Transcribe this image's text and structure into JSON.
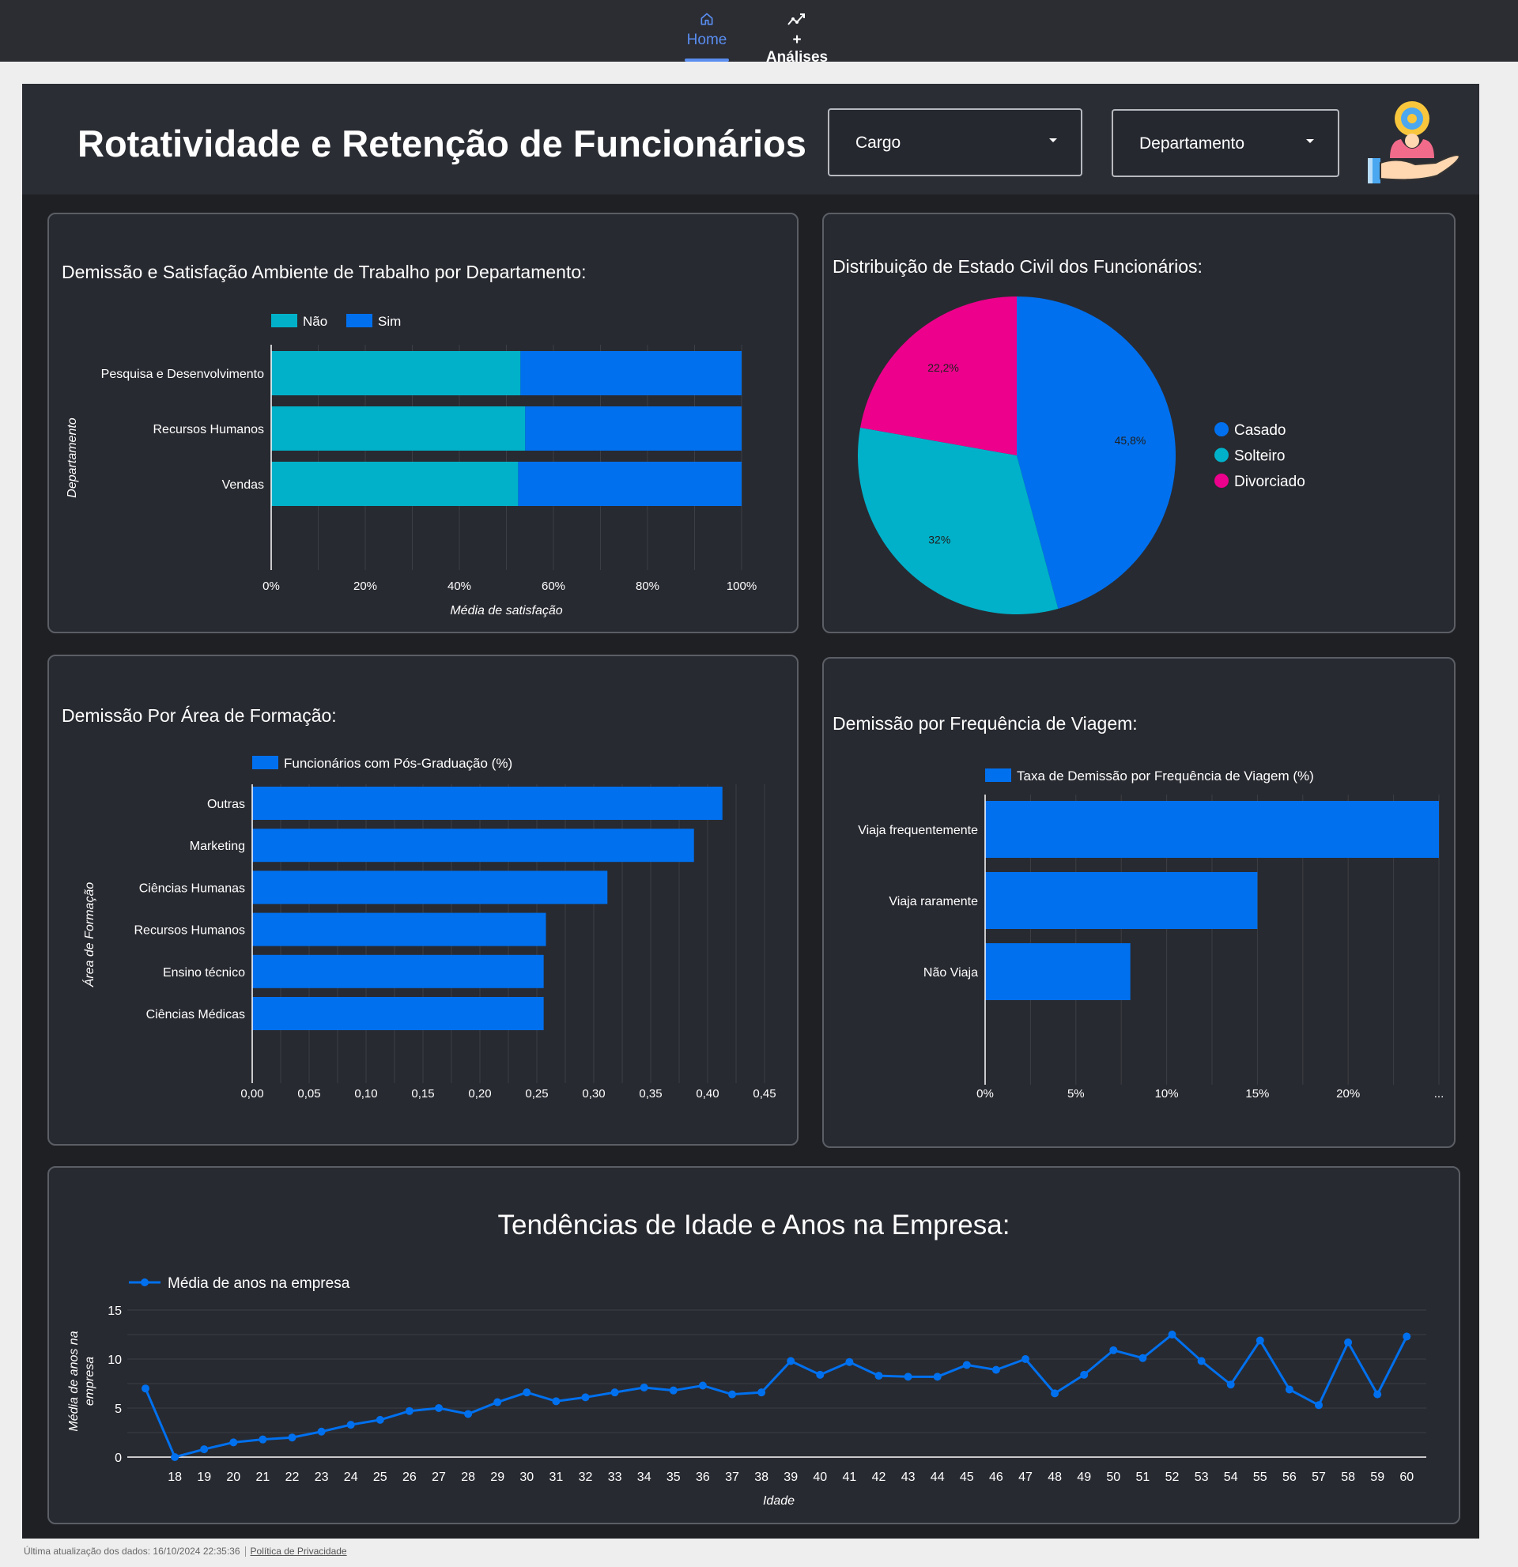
{
  "nav": {
    "tabs": [
      {
        "label": "Home",
        "icon": "home-icon",
        "active": true
      },
      {
        "label": "+ Análises",
        "icon": "trending-up-icon",
        "active": false
      }
    ]
  },
  "header": {
    "title": "Rotatividade e Retenção de Funcionários",
    "filters": [
      {
        "label": "Cargo"
      },
      {
        "label": "Departamento"
      }
    ],
    "logo_icon": "employee-care-hand-icon"
  },
  "colors": {
    "background": "#1f2024",
    "panel": "#282a31",
    "blue": "#0070ee",
    "teal": "#00b1c9",
    "pink": "#ec008c"
  },
  "footer": {
    "updated": "Última atualização dos dados: 16/10/2024 22:35:36",
    "privacy": "Política de Privacidade"
  },
  "chart_data": [
    {
      "id": "satisfacao",
      "type": "bar",
      "orientation": "horizontal",
      "stacked": "percent",
      "title": "Demissão e Satisfação Ambiente de Trabalho por Departamento:",
      "xlabel": "Média de satisfação",
      "ylabel": "Departamento",
      "categories": [
        "Pesquisa e Desenvolvimento",
        "Recursos Humanos",
        "Vendas"
      ],
      "series": [
        {
          "name": "Não",
          "color": "#00b1c9",
          "values": [
            53,
            54,
            52.5
          ]
        },
        {
          "name": "Sim",
          "color": "#0070ee",
          "values": [
            47,
            46,
            47.5
          ]
        }
      ],
      "xticks": [
        "0%",
        "20%",
        "40%",
        "60%",
        "80%",
        "100%"
      ],
      "xlim": [
        0,
        100
      ],
      "legend": "top",
      "grid": true
    },
    {
      "id": "estado-civil",
      "type": "pie",
      "title": "Distribuição de Estado Civil dos Funcionários:",
      "slices": [
        {
          "name": "Casado",
          "value": 45.8,
          "label": "45,8%",
          "color": "#0070ee"
        },
        {
          "name": "Solteiro",
          "value": 32,
          "label": "32%",
          "color": "#00b1c9"
        },
        {
          "name": "Divorciado",
          "value": 22.2,
          "label": "22,2%",
          "color": "#ec008c"
        }
      ],
      "legend": "right"
    },
    {
      "id": "formacao",
      "type": "bar",
      "orientation": "horizontal",
      "title": "Demissão Por Área de Formação:",
      "ylabel": "Área de Formação",
      "categories": [
        "Outras",
        "Marketing",
        "Ciências Humanas",
        "Recursos Humanos",
        "Ensino técnico",
        "Ciências Médicas"
      ],
      "series": [
        {
          "name": "Funcionários com Pós-Graduação (%)",
          "color": "#0070ee",
          "values": [
            0.413,
            0.388,
            0.312,
            0.258,
            0.256,
            0.256
          ]
        }
      ],
      "xticks": [
        "0,00",
        "0,05",
        "0,10",
        "0,15",
        "0,20",
        "0,25",
        "0,30",
        "0,35",
        "0,40",
        "0,45"
      ],
      "xlim": [
        0,
        0.45
      ],
      "legend": "top",
      "grid": true
    },
    {
      "id": "viagem",
      "type": "bar",
      "orientation": "horizontal",
      "title": "Demissão por Frequência de Viagem:",
      "categories": [
        "Viaja frequentemente",
        "Viaja raramente",
        "Não Viaja"
      ],
      "series": [
        {
          "name": "Taxa de Demissão por Frequência de Viagem (%)",
          "color": "#0070ee",
          "values": [
            25,
            15,
            8
          ]
        }
      ],
      "xticks": [
        "0%",
        "5%",
        "10%",
        "15%",
        "20%",
        "..."
      ],
      "xlim": [
        0,
        25
      ],
      "legend": "top",
      "grid": true
    },
    {
      "id": "idade",
      "type": "line",
      "title": "Tendências de Idade e Anos na Empresa:",
      "xlabel": "Idade",
      "ylabel": "Média de anos na empresa",
      "x": [
        17,
        18,
        19,
        20,
        21,
        22,
        23,
        24,
        25,
        26,
        27,
        28,
        29,
        30,
        31,
        32,
        33,
        34,
        35,
        36,
        37,
        38,
        39,
        40,
        41,
        42,
        43,
        44,
        45,
        46,
        47,
        48,
        49,
        50,
        51,
        52,
        53,
        54,
        55,
        56,
        57,
        58,
        59,
        60
      ],
      "xtick_labels": [
        "18",
        "19",
        "20",
        "21",
        "22",
        "23",
        "24",
        "25",
        "26",
        "27",
        "28",
        "29",
        "30",
        "31",
        "32",
        "33",
        "34",
        "35",
        "36",
        "37",
        "38",
        "39",
        "40",
        "41",
        "42",
        "43",
        "44",
        "45",
        "46",
        "47",
        "48",
        "49",
        "50",
        "51",
        "52",
        "53",
        "54",
        "55",
        "56",
        "57",
        "58",
        "59",
        "60"
      ],
      "series": [
        {
          "name": "Média de anos na empresa",
          "color": "#0070ee",
          "values": [
            7,
            0,
            0.8,
            1.5,
            1.8,
            2,
            2.6,
            3.3,
            3.8,
            4.7,
            5,
            4.4,
            5.6,
            6.6,
            5.7,
            6.1,
            6.6,
            7.1,
            6.8,
            7.3,
            6.4,
            6.6,
            9.8,
            8.4,
            9.7,
            8.3,
            8.2,
            8.2,
            9.4,
            8.9,
            10,
            6.5,
            8.4,
            10.9,
            10.1,
            12.5,
            9.8,
            7.4,
            11.9,
            6.9,
            5.3,
            11.7,
            6.4,
            12.3
          ]
        }
      ],
      "yticks": [
        "0",
        "5",
        "10",
        "15"
      ],
      "ylim": [
        0,
        15
      ],
      "legend": "top-left",
      "grid": true
    }
  ]
}
